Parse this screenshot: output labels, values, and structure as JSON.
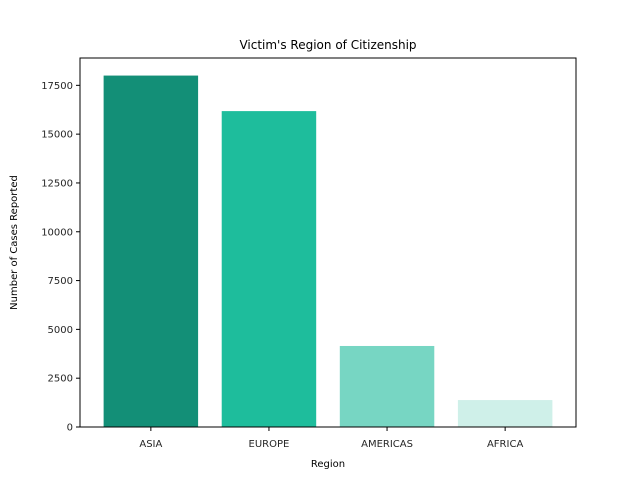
{
  "chart_data": {
    "type": "bar",
    "title": "Victim's Region of Citizenship",
    "xlabel": "Region",
    "ylabel": "Number of Cases Reported",
    "categories": [
      "ASIA",
      "EUROPE",
      "AMERICAS",
      "AFRICA"
    ],
    "values": [
      18000,
      16180,
      4150,
      1380
    ],
    "colors": [
      "#138f77",
      "#1ebd9c",
      "#77d6c3",
      "#cff0e9"
    ],
    "ylim": [
      0,
      18900
    ],
    "yticks": [
      0,
      2500,
      5000,
      7500,
      10000,
      12500,
      15000,
      17500
    ],
    "grid": false,
    "legend": "none"
  }
}
